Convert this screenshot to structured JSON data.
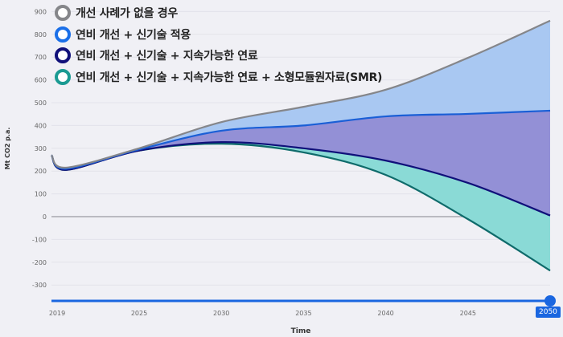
{
  "chart_data": {
    "type": "area",
    "xlabel": "Time",
    "ylabel": "Mt CO2 p.a.",
    "ylim": [
      -300,
      900
    ],
    "yticks": [
      900,
      800,
      700,
      600,
      500,
      400,
      300,
      200,
      100,
      0,
      -100,
      -200,
      -300
    ],
    "xticks": [
      "2019",
      "2025",
      "2030",
      "2035",
      "2040",
      "2045",
      "2050"
    ],
    "grid": true,
    "legend_position": "top-left",
    "x": [
      2019,
      2020,
      2025,
      2030,
      2035,
      2040,
      2045,
      2050
    ],
    "series": [
      {
        "name": "개선 사례가 없을 경우",
        "line_color": "#85868a",
        "fill_color": "#a9c8f2",
        "values": [
          270,
          215,
          300,
          415,
          482,
          557,
          697,
          860
        ]
      },
      {
        "name": "연비 개선 + 신기술 적용",
        "line_color": "#1a5fd6",
        "fill_color": "#9390d6",
        "values": [
          270,
          210,
          295,
          377,
          400,
          440,
          451,
          465
        ]
      },
      {
        "name": "연비 개선 + 신기술 + 지속가능한 연료",
        "line_color": "#10107a",
        "fill_color": "#8adad6",
        "values": [
          270,
          205,
          290,
          327,
          300,
          246,
          148,
          5
        ]
      },
      {
        "name": "연비 개선 + 신기술 + 지속가능한 연료 + 소형모듈원자료(SMR)",
        "line_color": "#0f6b6b",
        "values": [
          270,
          205,
          290,
          320,
          282,
          183,
          -11,
          -237
        ]
      }
    ]
  },
  "slider": {
    "value": "2050",
    "color": "#1a66e0"
  }
}
